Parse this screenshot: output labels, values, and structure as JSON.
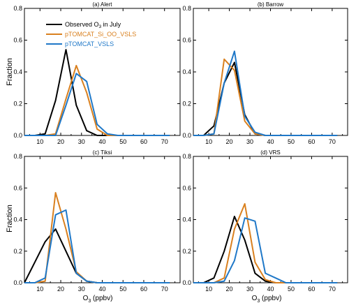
{
  "figure": {
    "ylabel": "Fraction",
    "xlabel_main": "O",
    "xlabel_sub": "3",
    "xlabel_unit": " (ppbv)",
    "legend": [
      {
        "label": "Observed O",
        "sub": "3",
        "rest": " in July",
        "color": "#000000"
      },
      {
        "label": "pTOMCAT_Si_OO_VSLS",
        "sub": "",
        "rest": "",
        "color": "#d9801f"
      },
      {
        "label": "pTOMCAT_VSLS",
        "sub": "",
        "rest": "",
        "color": "#1f78c8"
      }
    ],
    "colors": {
      "observed": "#000000",
      "si_oo_vsls": "#d9801f",
      "vsls": "#1f78c8"
    }
  },
  "chart_data": [
    {
      "type": "line",
      "title": "(a) Alert",
      "xlim": [
        2.5,
        77.5
      ],
      "ylim": [
        0.0,
        0.8
      ],
      "xticks": [
        10,
        20,
        30,
        40,
        50,
        60,
        70
      ],
      "yticks": [
        "0.0",
        "0.2",
        "0.4",
        "0.6",
        "0.8"
      ],
      "x": [
        2.5,
        7.5,
        12.5,
        17.5,
        22.5,
        27.5,
        32.5,
        37.5,
        42.5,
        47.5,
        52.5,
        57.5,
        62.5,
        67.5,
        72.5
      ],
      "series": [
        {
          "name": "Observed O3 in July",
          "key": "observed",
          "values": [
            0,
            0,
            0.01,
            0.22,
            0.54,
            0.19,
            0.03,
            0,
            0,
            0,
            0,
            0,
            0,
            0,
            0
          ]
        },
        {
          "name": "pTOMCAT_Si_OO_VSLS",
          "key": "si_oo_vsls",
          "values": [
            0,
            0,
            0,
            0.01,
            0.23,
            0.44,
            0.27,
            0.04,
            0,
            0,
            0,
            0,
            0,
            0,
            0
          ]
        },
        {
          "name": "pTOMCAT_VSLS",
          "key": "vsls",
          "values": [
            0,
            0,
            0,
            0,
            0.19,
            0.39,
            0.34,
            0.07,
            0.01,
            0,
            0,
            0,
            0,
            0,
            0
          ]
        }
      ]
    },
    {
      "type": "line",
      "title": "(b) Barrow",
      "xlim": [
        2.5,
        77.5
      ],
      "ylim": [
        0.0,
        0.8
      ],
      "xticks": [
        10,
        20,
        30,
        40,
        50,
        60,
        70
      ],
      "yticks": [
        "0.0",
        "0.2",
        "0.4",
        "0.6",
        "0.8"
      ],
      "x": [
        2.5,
        7.5,
        12.5,
        17.5,
        22.5,
        27.5,
        32.5,
        37.5,
        42.5,
        47.5,
        52.5,
        57.5,
        62.5,
        67.5,
        72.5
      ],
      "series": [
        {
          "name": "Observed O3 in July",
          "key": "observed",
          "values": [
            0,
            0,
            0.06,
            0.33,
            0.46,
            0.13,
            0.01,
            0,
            0,
            0,
            0,
            0,
            0,
            0,
            0
          ]
        },
        {
          "name": "pTOMCAT_Si_OO_VSLS",
          "key": "si_oo_vsls",
          "values": [
            0,
            0,
            0.01,
            0.48,
            0.41,
            0.09,
            0.01,
            0,
            0,
            0,
            0,
            0,
            0,
            0,
            0
          ]
        },
        {
          "name": "pTOMCAT_VSLS",
          "key": "vsls",
          "values": [
            0,
            0,
            0.01,
            0.33,
            0.53,
            0.12,
            0.02,
            0,
            0,
            0,
            0,
            0,
            0,
            0,
            0
          ]
        }
      ]
    },
    {
      "type": "line",
      "title": "(c) Tiksi",
      "xlim": [
        2.5,
        77.5
      ],
      "ylim": [
        0.0,
        0.8
      ],
      "xticks": [
        10,
        20,
        30,
        40,
        50,
        60,
        70
      ],
      "yticks": [
        "0.0",
        "0.2",
        "0.4",
        "0.6",
        "0.8"
      ],
      "x": [
        2.5,
        7.5,
        12.5,
        17.5,
        22.5,
        27.5,
        32.5,
        37.5,
        42.5,
        47.5,
        52.5,
        57.5,
        62.5,
        67.5,
        72.5
      ],
      "series": [
        {
          "name": "Observed O3 in July",
          "key": "observed",
          "values": [
            0,
            0.13,
            0.26,
            0.34,
            0.2,
            0.06,
            0.01,
            0,
            0,
            0,
            0,
            0,
            0,
            0,
            0
          ]
        },
        {
          "name": "pTOMCAT_Si_OO_VSLS",
          "key": "si_oo_vsls",
          "values": [
            0,
            0,
            0.01,
            0.57,
            0.34,
            0.07,
            0.01,
            0,
            0,
            0,
            0,
            0,
            0,
            0,
            0
          ]
        },
        {
          "name": "pTOMCAT_VSLS",
          "key": "vsls",
          "values": [
            0,
            0,
            0.03,
            0.43,
            0.46,
            0.06,
            0.01,
            0,
            0,
            0,
            0,
            0,
            0,
            0,
            0
          ]
        }
      ]
    },
    {
      "type": "line",
      "title": "(d) VRS",
      "xlim": [
        2.5,
        77.5
      ],
      "ylim": [
        0.0,
        0.8
      ],
      "xticks": [
        10,
        20,
        30,
        40,
        50,
        60,
        70
      ],
      "yticks": [
        "0.0",
        "0.2",
        "0.4",
        "0.6",
        "0.8"
      ],
      "x": [
        2.5,
        7.5,
        12.5,
        17.5,
        22.5,
        27.5,
        32.5,
        37.5,
        42.5,
        47.5,
        52.5,
        57.5,
        62.5,
        67.5,
        72.5
      ],
      "series": [
        {
          "name": "Observed O3 in July",
          "key": "observed",
          "values": [
            0,
            0,
            0.03,
            0.2,
            0.42,
            0.27,
            0.06,
            0.01,
            0,
            0,
            0,
            0,
            0,
            0,
            0
          ]
        },
        {
          "name": "pTOMCAT_Si_OO_VSLS",
          "key": "si_oo_vsls",
          "values": [
            0,
            0,
            0,
            0.03,
            0.34,
            0.5,
            0.13,
            0.02,
            0,
            0,
            0,
            0,
            0,
            0,
            0
          ]
        },
        {
          "name": "pTOMCAT_VSLS",
          "key": "vsls",
          "values": [
            0,
            0,
            0,
            0.01,
            0.14,
            0.41,
            0.39,
            0.06,
            0.03,
            0,
            0,
            0,
            0,
            0,
            0
          ]
        }
      ]
    }
  ]
}
